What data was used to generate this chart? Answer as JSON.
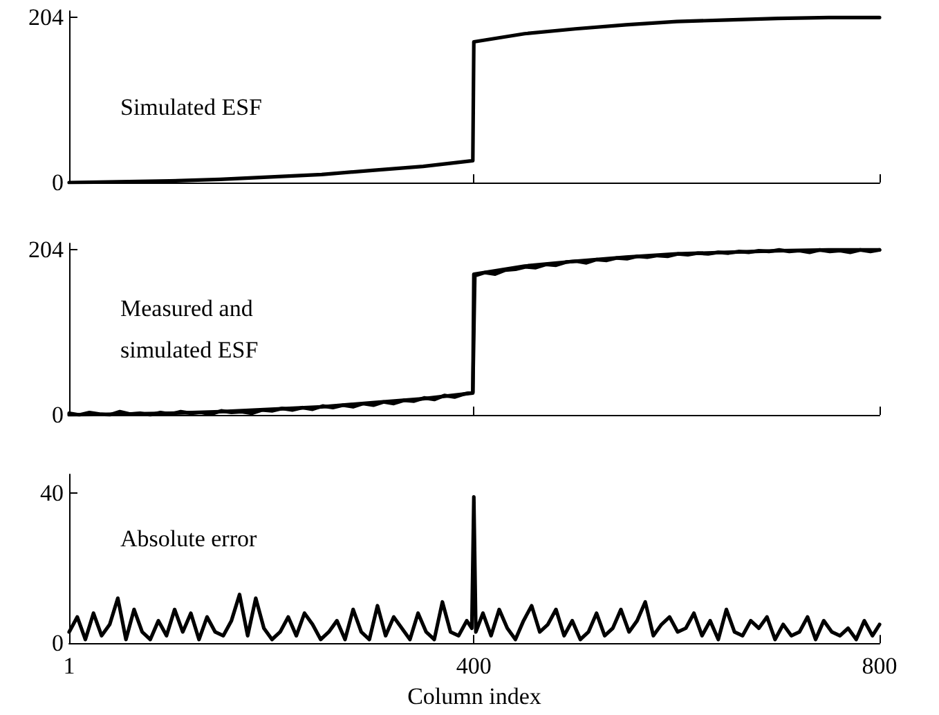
{
  "chart_data": [
    {
      "type": "line",
      "annotations": [
        "Simulated ESF"
      ],
      "xlim": [
        1,
        800
      ],
      "xticks": [
        1,
        400,
        800
      ],
      "ylim": [
        0,
        212
      ],
      "yticks": [
        0,
        204
      ],
      "tick_labels": "y",
      "marker": "none",
      "line_style": "solid",
      "series": [
        {
          "color": "#000000",
          "x": [
            1,
            50,
            100,
            150,
            200,
            250,
            300,
            350,
            399,
            400,
            450,
            500,
            550,
            600,
            650,
            700,
            750,
            800
          ],
          "values": [
            0,
            1,
            2,
            4,
            7,
            10,
            15,
            20,
            27,
            174,
            184,
            190,
            195,
            199,
            201,
            203,
            204,
            204
          ]
        }
      ]
    },
    {
      "type": "line",
      "annotations": [
        "Measured and\nsimulated ESF"
      ],
      "xlim": [
        1,
        800
      ],
      "xticks": [
        1,
        400,
        800
      ],
      "ylim": [
        0,
        212
      ],
      "yticks": [
        0,
        204
      ],
      "tick_labels": "y",
      "marker": "none",
      "line_style": "solid",
      "series": [
        {
          "color": "#000000",
          "x": [
            1,
            11,
            21,
            31,
            41,
            51,
            61,
            71,
            81,
            91,
            101,
            111,
            121,
            131,
            141,
            151,
            161,
            171,
            181,
            191,
            201,
            211,
            221,
            231,
            241,
            251,
            261,
            271,
            281,
            291,
            301,
            311,
            321,
            331,
            341,
            351,
            361,
            371,
            381,
            391,
            399,
            401,
            411,
            421,
            431,
            441,
            451,
            461,
            471,
            481,
            491,
            501,
            511,
            521,
            531,
            541,
            551,
            561,
            571,
            581,
            591,
            601,
            611,
            621,
            631,
            641,
            651,
            661,
            671,
            681,
            691,
            701,
            711,
            721,
            731,
            741,
            751,
            761,
            771,
            781,
            791,
            800
          ],
          "values": [
            2,
            0,
            3,
            1,
            0,
            4,
            1,
            2,
            0,
            3,
            1,
            4,
            2,
            3,
            1,
            5,
            3,
            4,
            2,
            6,
            5,
            8,
            6,
            9,
            7,
            11,
            9,
            12,
            10,
            14,
            12,
            16,
            14,
            18,
            17,
            21,
            19,
            24,
            22,
            26,
            28,
            172,
            176,
            174,
            179,
            180,
            183,
            182,
            186,
            185,
            189,
            190,
            188,
            192,
            191,
            194,
            193,
            196,
            195,
            197,
            196,
            199,
            198,
            200,
            199,
            201,
            200,
            202,
            201,
            203,
            202,
            204,
            202,
            203,
            201,
            204,
            202,
            203,
            201,
            204,
            202,
            204
          ]
        },
        {
          "color": "#000000",
          "x": [
            1,
            50,
            100,
            150,
            200,
            250,
            300,
            350,
            399,
            400,
            450,
            500,
            550,
            600,
            650,
            700,
            750,
            800
          ],
          "values": [
            0,
            1,
            2,
            4,
            7,
            10,
            15,
            20,
            27,
            174,
            184,
            190,
            195,
            199,
            201,
            203,
            204,
            204
          ]
        }
      ]
    },
    {
      "type": "line",
      "annotations": [
        "Absolute error"
      ],
      "xlabel": "Column index",
      "xlim": [
        1,
        800
      ],
      "xticks": [
        1,
        400,
        800
      ],
      "ylim": [
        0,
        45
      ],
      "yticks": [
        0,
        40
      ],
      "marker": "none",
      "line_style": "solid",
      "series": [
        {
          "color": "#000000",
          "x": [
            1,
            9,
            17,
            25,
            33,
            41,
            49,
            57,
            65,
            73,
            81,
            89,
            97,
            105,
            113,
            121,
            129,
            137,
            145,
            153,
            161,
            169,
            177,
            185,
            193,
            201,
            209,
            217,
            225,
            233,
            241,
            249,
            257,
            265,
            273,
            281,
            289,
            297,
            305,
            313,
            321,
            329,
            337,
            345,
            353,
            361,
            369,
            377,
            385,
            393,
            398,
            400,
            402,
            409,
            417,
            425,
            433,
            441,
            449,
            457,
            465,
            473,
            481,
            489,
            497,
            505,
            513,
            521,
            529,
            537,
            545,
            553,
            561,
            569,
            577,
            585,
            593,
            601,
            609,
            617,
            625,
            633,
            641,
            649,
            657,
            665,
            673,
            681,
            689,
            697,
            705,
            713,
            721,
            729,
            737,
            745,
            753,
            761,
            769,
            777,
            785,
            793,
            800
          ],
          "values": [
            3,
            7,
            1,
            8,
            2,
            5,
            12,
            1,
            9,
            3,
            1,
            6,
            2,
            9,
            3,
            8,
            1,
            7,
            3,
            2,
            6,
            13,
            2,
            12,
            4,
            1,
            3,
            7,
            2,
            8,
            5,
            1,
            3,
            6,
            1,
            9,
            3,
            1,
            10,
            2,
            7,
            4,
            1,
            8,
            3,
            1,
            11,
            3,
            2,
            6,
            4,
            39,
            3,
            8,
            2,
            9,
            4,
            1,
            6,
            10,
            3,
            5,
            9,
            2,
            6,
            1,
            3,
            8,
            2,
            4,
            9,
            3,
            6,
            11,
            2,
            5,
            7,
            3,
            4,
            8,
            2,
            6,
            1,
            9,
            3,
            2,
            6,
            4,
            7,
            1,
            5,
            2,
            3,
            7,
            1,
            6,
            3,
            2,
            4,
            1,
            6,
            2,
            5
          ]
        }
      ]
    }
  ]
}
